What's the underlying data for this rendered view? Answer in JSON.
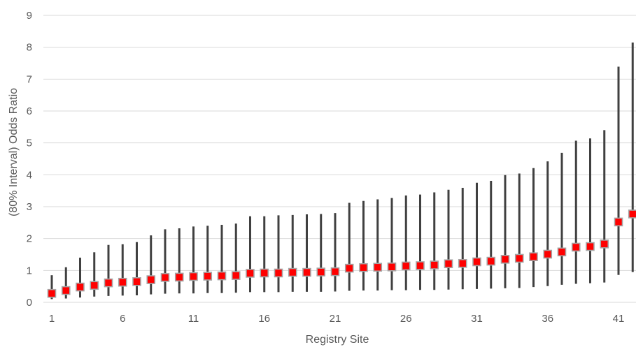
{
  "chart_data": {
    "type": "scatter",
    "xlabel": "Registry Site",
    "ylabel": "(80% Interval) Odds Ratio",
    "ylim": [
      0,
      9
    ],
    "y_ticks": [
      0,
      1,
      2,
      3,
      4,
      5,
      6,
      7,
      8,
      9
    ],
    "x_tick_labels": [
      "1",
      "6",
      "11",
      "16",
      "21",
      "26",
      "31",
      "36",
      "41"
    ],
    "grid": "horizontal",
    "colors": {
      "point": "#ff0000",
      "point_border": "#a6a6a6",
      "interval": "#404040",
      "grid": "#d9d9d9",
      "text": "#595959"
    },
    "series": [
      {
        "x": [
          1,
          2,
          3,
          4,
          5,
          6,
          7,
          8,
          9,
          10,
          11,
          12,
          13,
          14,
          15,
          16,
          17,
          18,
          19,
          20,
          21,
          22,
          23,
          24,
          25,
          26,
          27,
          28,
          29,
          30,
          31,
          32,
          33,
          34,
          35,
          36,
          37,
          38,
          39,
          40,
          41,
          42
        ],
        "estimate": [
          0.28,
          0.37,
          0.48,
          0.53,
          0.61,
          0.63,
          0.65,
          0.71,
          0.78,
          0.79,
          0.81,
          0.82,
          0.83,
          0.84,
          0.91,
          0.92,
          0.92,
          0.94,
          0.94,
          0.95,
          0.96,
          1.07,
          1.09,
          1.1,
          1.11,
          1.14,
          1.15,
          1.17,
          1.21,
          1.22,
          1.27,
          1.29,
          1.35,
          1.38,
          1.43,
          1.51,
          1.58,
          1.73,
          1.75,
          1.83,
          2.52,
          2.77
        ],
        "lower": [
          0.1,
          0.12,
          0.15,
          0.18,
          0.2,
          0.21,
          0.22,
          0.25,
          0.27,
          0.28,
          0.28,
          0.29,
          0.29,
          0.3,
          0.32,
          0.32,
          0.32,
          0.33,
          0.33,
          0.33,
          0.34,
          0.36,
          0.37,
          0.37,
          0.38,
          0.38,
          0.39,
          0.39,
          0.4,
          0.41,
          0.42,
          0.43,
          0.44,
          0.45,
          0.48,
          0.51,
          0.55,
          0.58,
          0.6,
          0.62,
          0.86,
          0.95
        ],
        "upper": [
          0.85,
          1.1,
          1.4,
          1.57,
          1.8,
          1.82,
          1.89,
          2.1,
          2.29,
          2.32,
          2.38,
          2.4,
          2.43,
          2.47,
          2.7,
          2.7,
          2.73,
          2.74,
          2.76,
          2.77,
          2.8,
          3.12,
          3.18,
          3.23,
          3.27,
          3.35,
          3.38,
          3.45,
          3.53,
          3.59,
          3.75,
          3.81,
          3.99,
          4.04,
          4.21,
          4.42,
          4.69,
          5.07,
          5.14,
          5.4,
          7.39,
          8.15
        ]
      }
    ]
  }
}
